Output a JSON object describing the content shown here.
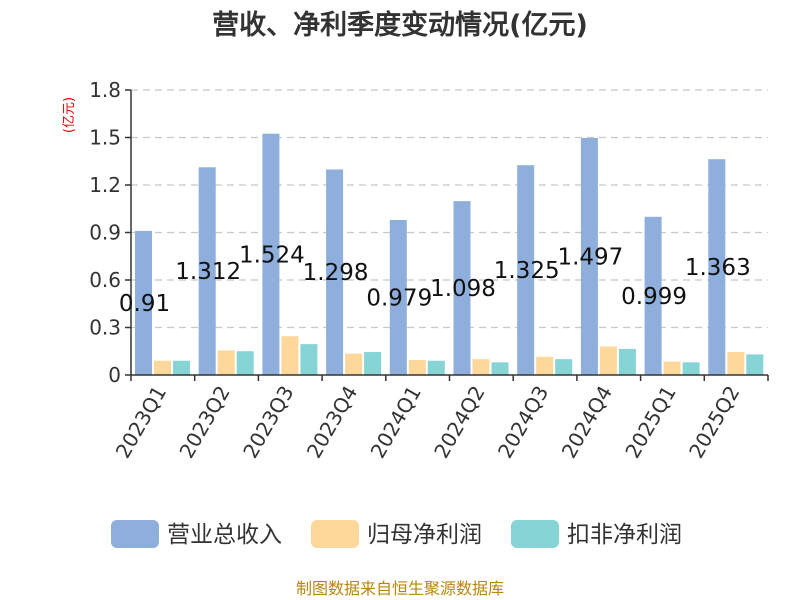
{
  "chart_data": {
    "type": "bar",
    "title": "营收、净利季度变动情况(亿元)",
    "ylabel": "(亿元)",
    "xlabel": "",
    "ylim": [
      0,
      1.8
    ],
    "yticks": [
      "0",
      "0.3",
      "0.6",
      "0.9",
      "1.2",
      "1.5",
      "1.8"
    ],
    "categories": [
      "2023Q1",
      "2023Q2",
      "2023Q3",
      "2023Q4",
      "2024Q1",
      "2024Q2",
      "2024Q3",
      "2024Q4",
      "2025Q1",
      "2025Q2"
    ],
    "series": [
      {
        "name": "营业总收入",
        "color": "#8eaedb",
        "values": [
          0.91,
          1.312,
          1.524,
          1.298,
          0.979,
          1.098,
          1.325,
          1.497,
          0.999,
          1.363
        ],
        "labels": [
          "0.91",
          "1.312",
          "1.524",
          "1.298",
          "0.979",
          "1.098",
          "1.325",
          "1.497",
          "0.999",
          "1.363"
        ]
      },
      {
        "name": "归母净利润",
        "color": "#fdd89a",
        "values": [
          0.09,
          0.155,
          0.245,
          0.135,
          0.095,
          0.1,
          0.115,
          0.18,
          0.085,
          0.145
        ]
      },
      {
        "name": "扣非净利润",
        "color": "#86d4d6",
        "values": [
          0.09,
          0.15,
          0.195,
          0.145,
          0.09,
          0.08,
          0.1,
          0.165,
          0.08,
          0.13
        ]
      }
    ],
    "grid": true,
    "legend": "bottom"
  },
  "footer": "制图数据来自恒生聚源数据库"
}
